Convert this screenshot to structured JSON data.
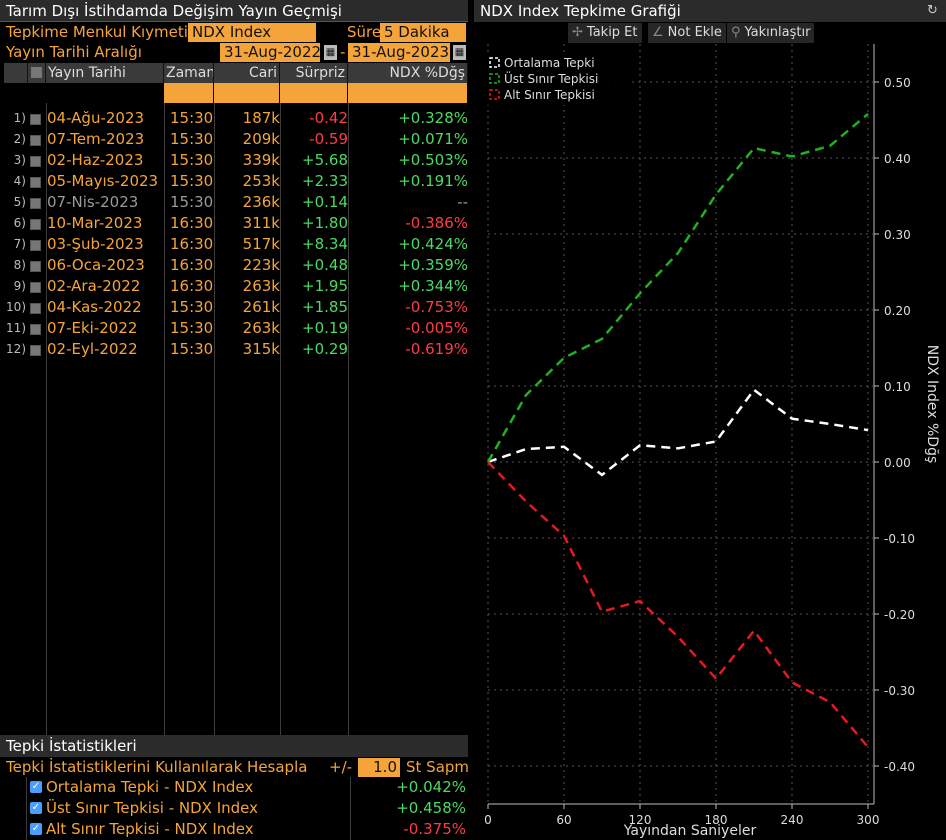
{
  "left_panel": {
    "title": "Tarım Dışı İstihdamda Değişim Yayın Geçmişi",
    "security_label": "Tepkime Menkul Kıymeti",
    "security_value": "NDX Index",
    "duration_label": "Süre",
    "duration_value": "5 Dakika",
    "date_range_label": "Yayın Tarihi Aralığı",
    "date_from": "31-Aug-2022",
    "date_sep": "-",
    "date_to": "31-Aug-2023",
    "columns": [
      "Yayın Tarihi",
      "Zaman",
      "Cari",
      "Sürpriz",
      "NDX %Dğş"
    ],
    "rows": [
      {
        "idx": "1)",
        "date": "04-Ağu-2023",
        "time": "15:30",
        "cari": "187k",
        "surprise": "-0.42",
        "ndx": "+0.328%",
        "surprise_class": "neg",
        "ndx_class": "pos"
      },
      {
        "idx": "2)",
        "date": "07-Tem-2023",
        "time": "15:30",
        "cari": "209k",
        "surprise": "-0.59",
        "ndx": "+0.071%",
        "surprise_class": "neg",
        "ndx_class": "pos"
      },
      {
        "idx": "3)",
        "date": "02-Haz-2023",
        "time": "15:30",
        "cari": "339k",
        "surprise": "+5.68",
        "ndx": "+0.503%",
        "surprise_class": "pos",
        "ndx_class": "pos"
      },
      {
        "idx": "4)",
        "date": "05-Mayıs-2023",
        "time": "15:30",
        "cari": "253k",
        "surprise": "+2.33",
        "ndx": "+0.191%",
        "surprise_class": "pos",
        "ndx_class": "pos"
      },
      {
        "idx": "5)",
        "date": "07-Nis-2023",
        "time": "15:30",
        "cari": "236k",
        "surprise": "+0.14",
        "ndx": "--",
        "surprise_class": "pos",
        "ndx_class": "gry",
        "dim": true
      },
      {
        "idx": "6)",
        "date": "10-Mar-2023",
        "time": "16:30",
        "cari": "311k",
        "surprise": "+1.80",
        "ndx": "-0.386%",
        "surprise_class": "pos",
        "ndx_class": "neg"
      },
      {
        "idx": "7)",
        "date": "03-Şub-2023",
        "time": "16:30",
        "cari": "517k",
        "surprise": "+8.34",
        "ndx": "+0.424%",
        "surprise_class": "pos",
        "ndx_class": "pos"
      },
      {
        "idx": "8)",
        "date": "06-Oca-2023",
        "time": "16:30",
        "cari": "223k",
        "surprise": "+0.48",
        "ndx": "+0.359%",
        "surprise_class": "pos",
        "ndx_class": "pos"
      },
      {
        "idx": "9)",
        "date": "02-Ara-2022",
        "time": "16:30",
        "cari": "263k",
        "surprise": "+1.95",
        "ndx": "+0.344%",
        "surprise_class": "pos",
        "ndx_class": "pos"
      },
      {
        "idx": "10)",
        "date": "04-Kas-2022",
        "time": "15:30",
        "cari": "261k",
        "surprise": "+1.85",
        "ndx": "-0.753%",
        "surprise_class": "pos",
        "ndx_class": "neg"
      },
      {
        "idx": "11)",
        "date": "07-Eki-2022",
        "time": "15:30",
        "cari": "263k",
        "surprise": "+0.19",
        "ndx": "-0.005%",
        "surprise_class": "pos",
        "ndx_class": "neg"
      },
      {
        "idx": "12)",
        "date": "02-Eyl-2022",
        "time": "15:30",
        "cari": "315k",
        "surprise": "+0.29",
        "ndx": "-0.619%",
        "surprise_class": "pos",
        "ndx_class": "neg"
      }
    ]
  },
  "stats_panel": {
    "title": "Tepki İstatistikleri",
    "calc_label": "Tepki İstatistiklerini Kullanılarak Hesapla",
    "plus_minus": "+/-",
    "std_value": "1.0",
    "std_label": "St Sapm",
    "items": [
      {
        "name": "Ortalama Tepki - NDX Index",
        "value": "+0.042%",
        "cls": "pos"
      },
      {
        "name": "Üst Sınır Tepkisi - NDX Index",
        "value": "+0.458%",
        "cls": "pos"
      },
      {
        "name": "Alt Sınır Tepkisi - NDX Index",
        "value": "-0.375%",
        "cls": "neg"
      }
    ]
  },
  "right_panel": {
    "title": "NDX Index Tepkime Grafiği",
    "toolbar": {
      "follow": "Takip Et",
      "note": "Not Ekle",
      "zoom": "Yakınlaştır"
    }
  },
  "chart_data": {
    "type": "line",
    "xlabel": "Yayından Saniyeler",
    "ylabel": "NDX Index %Dğş",
    "xlim": [
      0,
      300
    ],
    "ylim": [
      -0.45,
      0.55
    ],
    "x_ticks": [
      "0",
      "60",
      "120",
      "180",
      "240",
      "300"
    ],
    "y_ticks": [
      "0.50",
      "0.40",
      "0.30",
      "0.20",
      "0.10",
      "0.00",
      "-0.10",
      "-0.20",
      "-0.30",
      "-0.40"
    ],
    "x": [
      0,
      30,
      60,
      90,
      120,
      150,
      180,
      210,
      240,
      270,
      300
    ],
    "legend_position": "top-left",
    "series": [
      {
        "name": "Ortalama Tepki",
        "color": "#ffffff",
        "values": [
          0.0,
          0.017,
          0.02,
          -0.017,
          0.022,
          0.018,
          0.027,
          0.095,
          0.057,
          0.05,
          0.042
        ]
      },
      {
        "name": "Üst Sınır Tepkisi",
        "color": "#22b022",
        "values": [
          0.0,
          0.088,
          0.137,
          0.162,
          0.222,
          0.275,
          0.352,
          0.413,
          0.402,
          0.416,
          0.458
        ]
      },
      {
        "name": "Alt Sınır Tepkisi",
        "color": "#e01b22",
        "values": [
          0.0,
          -0.052,
          -0.097,
          -0.197,
          -0.183,
          -0.23,
          -0.285,
          -0.222,
          -0.29,
          -0.316,
          -0.375
        ]
      }
    ]
  }
}
